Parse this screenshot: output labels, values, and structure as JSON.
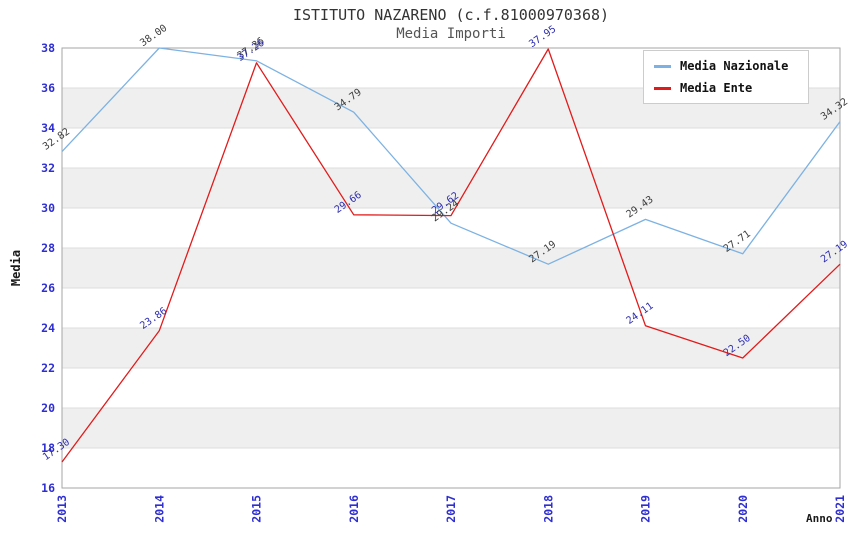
{
  "chart_data": {
    "type": "line",
    "title": "ISTITUTO NAZARENO (c.f.81000970368)",
    "subtitle": "Media Importi",
    "xlabel": "Anno",
    "ylabel": "Media",
    "categories": [
      "2013",
      "2014",
      "2015",
      "2016",
      "2017",
      "2018",
      "2019",
      "2020",
      "2021"
    ],
    "ylim": [
      16,
      38
    ],
    "ytick_step": 2,
    "yticks": [
      16,
      18,
      20,
      22,
      24,
      26,
      28,
      30,
      32,
      34,
      36,
      38
    ],
    "grid": "horizontal-alternating-bands",
    "legend_position": "upper-right",
    "point_label_decimals": 2,
    "colors": {
      "band": "#ffffff",
      "band_alt": "#efefef",
      "grid": "#dcdcdc",
      "frame": "#a6a6a6",
      "tick": "#2e2ed2",
      "title": "#333333",
      "subtitle": "#555555",
      "legend_border": "#cccccc"
    },
    "series": [
      {
        "name": "Media Nazionale",
        "color": "#7cb2e3",
        "label_color": "#3d3d3d",
        "values": [
          32.82,
          38.0,
          37.36,
          34.79,
          29.24,
          27.19,
          29.43,
          27.71,
          34.32
        ]
      },
      {
        "name": "Media Ente",
        "color": "#e11b1b",
        "label_color": "#2d2db0",
        "values": [
          17.3,
          23.86,
          37.26,
          29.66,
          29.62,
          37.95,
          24.11,
          22.5,
          27.19
        ]
      }
    ]
  }
}
